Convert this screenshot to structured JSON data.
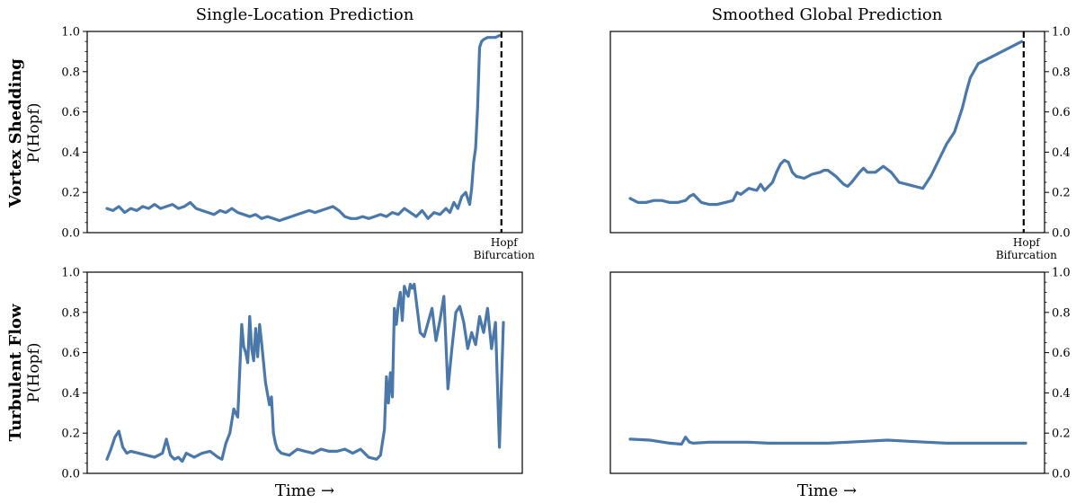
{
  "figure": {
    "col_titles": [
      "Single-Location Prediction",
      "Smoothed Global Prediction"
    ],
    "row_labels": [
      {
        "title": "Vortex Shedding",
        "subtitle": "P(Hopf)"
      },
      {
        "title": "Turbulent Flow",
        "subtitle": "P(Hopf)"
      }
    ],
    "x_label": "Time →",
    "hopf_label": [
      "Hopf",
      "Bifurcation"
    ],
    "line_color": "#4a78aa"
  },
  "chart_data": [
    {
      "id": "vortex-single",
      "type": "line",
      "ylim": [
        0,
        1
      ],
      "yticks": [
        "0.0",
        "0.2",
        "0.4",
        "0.6",
        "0.8",
        "1.0"
      ],
      "xlim": [
        0,
        100
      ],
      "marker_x": 99.5,
      "x": [
        0,
        1.5,
        3,
        4.5,
        6,
        7.5,
        9,
        10.5,
        12,
        13.5,
        15,
        16.5,
        18,
        19.5,
        21,
        22.5,
        24,
        25.5,
        27,
        28.5,
        30,
        31.5,
        33,
        34.5,
        36,
        37.5,
        39,
        40.5,
        42,
        43.5,
        45,
        46.5,
        48,
        49.5,
        51,
        52.5,
        54,
        55.5,
        57,
        58.5,
        60,
        61.5,
        63,
        64.5,
        66,
        67.5,
        69,
        70.5,
        72,
        73.5,
        75,
        76.5,
        78,
        79.5,
        81,
        82.5,
        84,
        85.5,
        86.5,
        87.5,
        88.5,
        89.5,
        90.5,
        91.5,
        92,
        92.5,
        93,
        93.5,
        94,
        94.5,
        95,
        96,
        97,
        98,
        99
      ],
      "values": [
        0.12,
        0.11,
        0.13,
        0.1,
        0.12,
        0.11,
        0.13,
        0.12,
        0.14,
        0.12,
        0.13,
        0.14,
        0.12,
        0.13,
        0.15,
        0.12,
        0.11,
        0.1,
        0.09,
        0.11,
        0.1,
        0.12,
        0.1,
        0.09,
        0.08,
        0.09,
        0.07,
        0.08,
        0.07,
        0.06,
        0.07,
        0.08,
        0.09,
        0.1,
        0.11,
        0.1,
        0.11,
        0.12,
        0.13,
        0.11,
        0.08,
        0.07,
        0.07,
        0.08,
        0.07,
        0.08,
        0.09,
        0.08,
        0.1,
        0.09,
        0.12,
        0.1,
        0.08,
        0.11,
        0.07,
        0.1,
        0.09,
        0.12,
        0.1,
        0.15,
        0.12,
        0.18,
        0.2,
        0.14,
        0.22,
        0.35,
        0.42,
        0.62,
        0.92,
        0.95,
        0.96,
        0.97,
        0.97,
        0.97,
        0.98
      ]
    },
    {
      "id": "vortex-global",
      "type": "line",
      "ylim": [
        0,
        1
      ],
      "yticks": [
        "0.0",
        "0.2",
        "0.4",
        "0.6",
        "0.8",
        "1.0"
      ],
      "xlim": [
        0,
        100
      ],
      "marker_x": 99.5,
      "x": [
        0,
        2,
        4,
        6,
        8,
        10,
        12,
        14,
        15,
        16,
        18,
        20,
        22,
        24,
        26,
        27,
        28,
        30,
        32,
        33,
        34,
        36,
        37,
        38,
        39,
        40,
        41,
        42,
        44,
        46,
        48,
        49,
        50,
        52,
        54,
        55,
        56,
        58,
        59,
        60,
        62,
        64,
        66,
        68,
        70,
        72,
        74,
        76,
        78,
        80,
        82,
        84,
        85,
        86,
        88,
        90,
        92,
        94,
        96,
        98,
        99
      ],
      "values": [
        0.17,
        0.15,
        0.15,
        0.16,
        0.16,
        0.15,
        0.15,
        0.16,
        0.18,
        0.19,
        0.15,
        0.14,
        0.14,
        0.15,
        0.16,
        0.2,
        0.19,
        0.22,
        0.21,
        0.24,
        0.21,
        0.25,
        0.3,
        0.34,
        0.36,
        0.35,
        0.3,
        0.28,
        0.27,
        0.29,
        0.3,
        0.31,
        0.31,
        0.28,
        0.24,
        0.23,
        0.25,
        0.3,
        0.32,
        0.3,
        0.3,
        0.33,
        0.3,
        0.25,
        0.24,
        0.23,
        0.22,
        0.28,
        0.36,
        0.44,
        0.5,
        0.62,
        0.7,
        0.77,
        0.84,
        0.86,
        0.88,
        0.9,
        0.92,
        0.94,
        0.95
      ]
    },
    {
      "id": "turbulent-single",
      "type": "line",
      "ylim": [
        0,
        1
      ],
      "yticks": [
        "0.0",
        "0.2",
        "0.4",
        "0.6",
        "0.8",
        "1.0"
      ],
      "xlim": [
        0,
        100
      ],
      "x": [
        0,
        1,
        2,
        3,
        4,
        5,
        6,
        8,
        10,
        12,
        14,
        15,
        16,
        17,
        18,
        19,
        20,
        21,
        22,
        24,
        26,
        28,
        29,
        30,
        31,
        32,
        33,
        34,
        34.5,
        35,
        35.5,
        36,
        36.5,
        37,
        37.5,
        38,
        38.5,
        39,
        40,
        41,
        41.5,
        42,
        42.5,
        43,
        44,
        46,
        48,
        50,
        52,
        54,
        56,
        58,
        60,
        62,
        64,
        66,
        68,
        69,
        70,
        70.5,
        71,
        71.5,
        72,
        72.5,
        73,
        73.5,
        74,
        74.5,
        75,
        75.5,
        76,
        76.5,
        77,
        77.5,
        78,
        78.5,
        79,
        80,
        81,
        82,
        83,
        84,
        85,
        86,
        87,
        88,
        89,
        90,
        91,
        92,
        93,
        94,
        95,
        96,
        97,
        98,
        99,
        100
      ],
      "values": [
        0.07,
        0.12,
        0.18,
        0.21,
        0.13,
        0.1,
        0.11,
        0.1,
        0.09,
        0.08,
        0.1,
        0.17,
        0.09,
        0.07,
        0.08,
        0.06,
        0.1,
        0.09,
        0.08,
        0.1,
        0.11,
        0.08,
        0.07,
        0.15,
        0.2,
        0.32,
        0.28,
        0.74,
        0.63,
        0.6,
        0.55,
        0.78,
        0.62,
        0.56,
        0.72,
        0.58,
        0.74,
        0.65,
        0.45,
        0.34,
        0.38,
        0.2,
        0.15,
        0.12,
        0.1,
        0.09,
        0.12,
        0.11,
        0.1,
        0.12,
        0.11,
        0.11,
        0.12,
        0.1,
        0.12,
        0.08,
        0.07,
        0.09,
        0.22,
        0.48,
        0.35,
        0.5,
        0.38,
        0.82,
        0.74,
        0.84,
        0.9,
        0.76,
        0.93,
        0.9,
        0.88,
        0.94,
        0.92,
        0.94,
        0.86,
        0.78,
        0.7,
        0.68,
        0.75,
        0.82,
        0.66,
        0.76,
        0.88,
        0.42,
        0.62,
        0.8,
        0.83,
        0.75,
        0.62,
        0.7,
        0.64,
        0.78,
        0.7,
        0.82,
        0.62,
        0.75,
        0.13,
        0.75
      ]
    },
    {
      "id": "turbulent-global",
      "type": "line",
      "ylim": [
        0,
        1
      ],
      "yticks": [
        "0.0",
        "0.2",
        "0.4",
        "0.6",
        "0.8",
        "1.0"
      ],
      "xlim": [
        0,
        100
      ],
      "x": [
        0,
        5,
        10,
        13,
        14,
        15,
        16,
        20,
        25,
        30,
        35,
        40,
        45,
        50,
        55,
        60,
        65,
        70,
        75,
        80,
        85,
        90,
        95,
        100
      ],
      "values": [
        0.17,
        0.165,
        0.15,
        0.145,
        0.18,
        0.155,
        0.15,
        0.155,
        0.155,
        0.155,
        0.15,
        0.15,
        0.15,
        0.15,
        0.155,
        0.16,
        0.165,
        0.16,
        0.155,
        0.15,
        0.15,
        0.15,
        0.15,
        0.15
      ]
    }
  ]
}
